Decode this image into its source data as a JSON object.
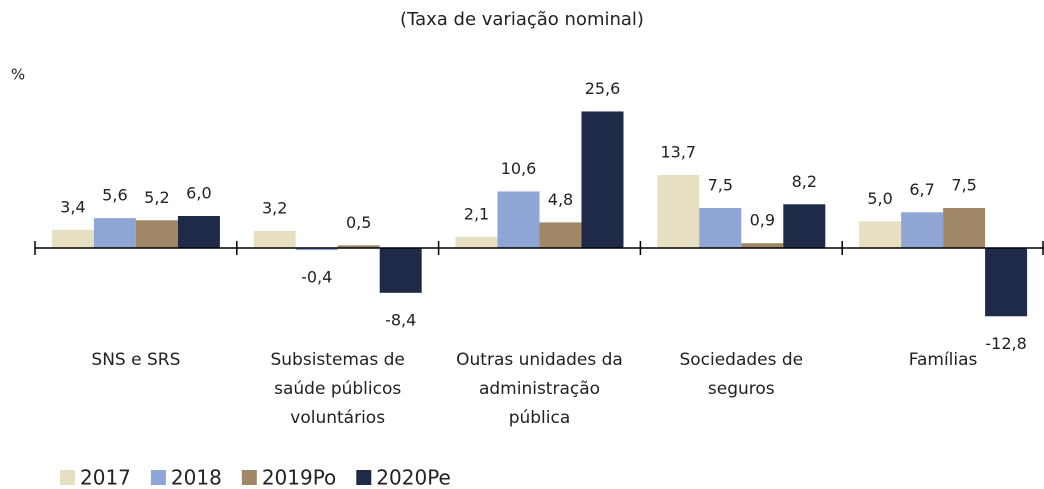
{
  "chart_data": {
    "type": "bar",
    "title": "(Taxa de variação nominal)",
    "ylabel": "%",
    "categories": [
      "SNS e SRS",
      "Subsistemas de saúde públicos voluntários",
      "Outras unidades da administração pública",
      "Sociedades de seguros",
      "Famílias"
    ],
    "series": [
      {
        "name": "2017",
        "color": "#e6dfc1",
        "values": [
          3.4,
          3.2,
          2.1,
          13.7,
          5.0
        ],
        "value_labels": [
          "3,4",
          "3,2",
          "2,1",
          "13,7",
          "5,0"
        ]
      },
      {
        "name": "2018",
        "color": "#8fa5d6",
        "values": [
          5.6,
          -0.4,
          10.6,
          7.5,
          6.7
        ],
        "value_labels": [
          "5,6",
          "-0,4",
          "10,6",
          "7,5",
          "6,7"
        ]
      },
      {
        "name": "2019Po",
        "color": "#a08866",
        "values": [
          5.2,
          0.5,
          4.8,
          0.9,
          7.5
        ],
        "value_labels": [
          "5,2",
          "0,5",
          "4,8",
          "0,9",
          "7,5"
        ]
      },
      {
        "name": "2020Pe",
        "color": "#1f2a48",
        "values": [
          6.0,
          -8.4,
          25.6,
          8.2,
          -12.8
        ],
        "value_labels": [
          "6,0",
          "-8,4",
          "25,6",
          "8,2",
          "-12,8"
        ]
      }
    ],
    "ylim": [
      -15,
      30
    ],
    "legend": "bottom-left"
  }
}
